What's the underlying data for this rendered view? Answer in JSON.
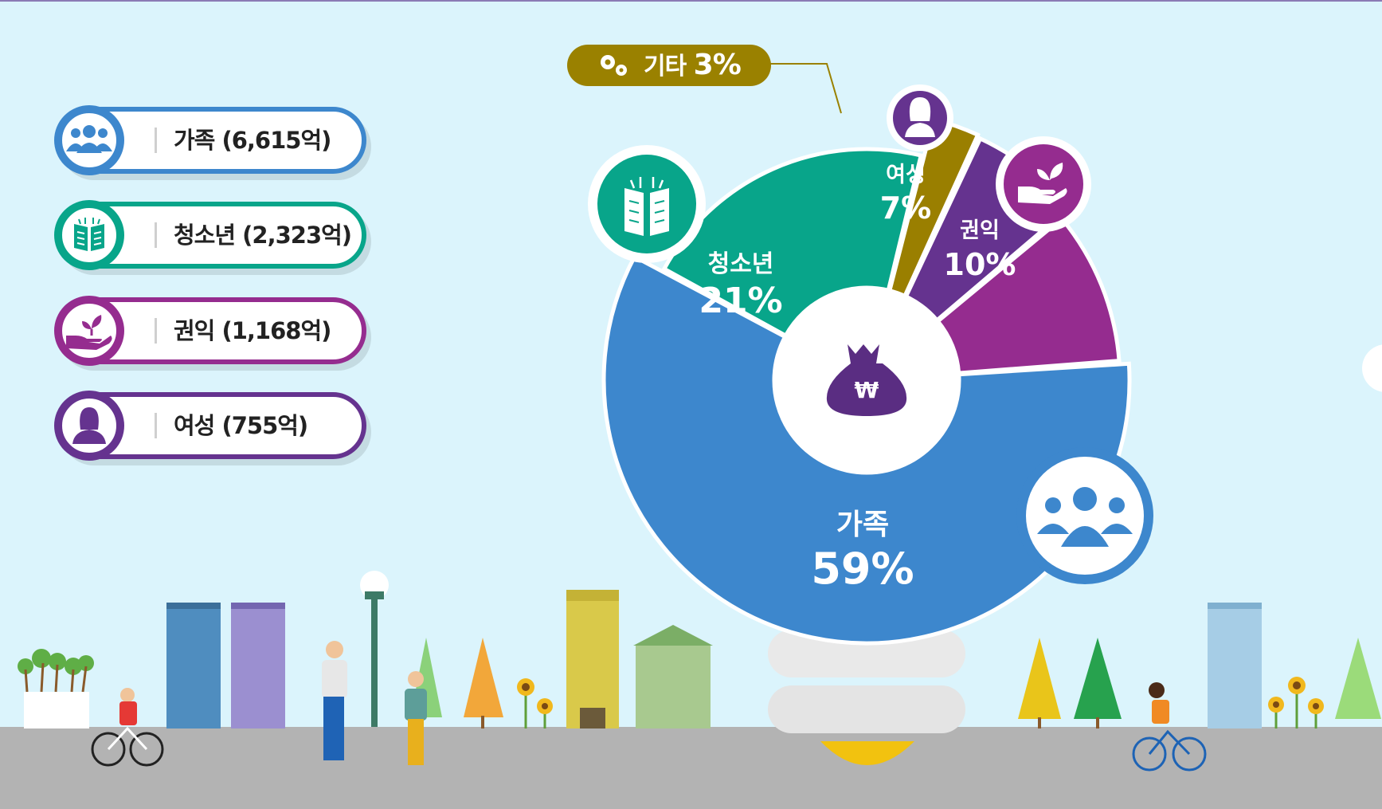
{
  "chart_data": {
    "type": "pie",
    "style": "donut",
    "categories": [
      "가족",
      "청소년",
      "기타",
      "여성",
      "권익"
    ],
    "values": [
      59,
      21,
      3,
      7,
      10
    ],
    "value_labels": [
      "59%",
      "21%",
      "3%",
      "7%",
      "10%"
    ],
    "colors": [
      "#3d87cd",
      "#08a58a",
      "#9a7f00",
      "#65338f",
      "#952c8f"
    ],
    "center_icon": "money-bag-won-icon"
  },
  "callout": {
    "etc_label": "기타",
    "etc_value": "3%",
    "etc_icon": "gears-icon"
  },
  "slice_labels": {
    "family": {
      "name": "가족",
      "pct": "59%"
    },
    "youth": {
      "name": "청소년",
      "pct": "21%"
    },
    "women": {
      "name": "여성",
      "pct": "7%"
    },
    "rights": {
      "name": "권익",
      "pct": "10%"
    }
  },
  "legend": [
    {
      "label": "가족 (6,615억)",
      "color": "#3d87cd",
      "icon": "family-people-icon"
    },
    {
      "label": "청소년 (2,323억)",
      "color": "#08a58a",
      "icon": "open-book-icon"
    },
    {
      "label": "권익 (1,168억)",
      "color": "#952c8f",
      "icon": "hand-sprout-icon"
    },
    {
      "label": "여성 (755억)",
      "color": "#65338f",
      "icon": "woman-icon"
    }
  ]
}
